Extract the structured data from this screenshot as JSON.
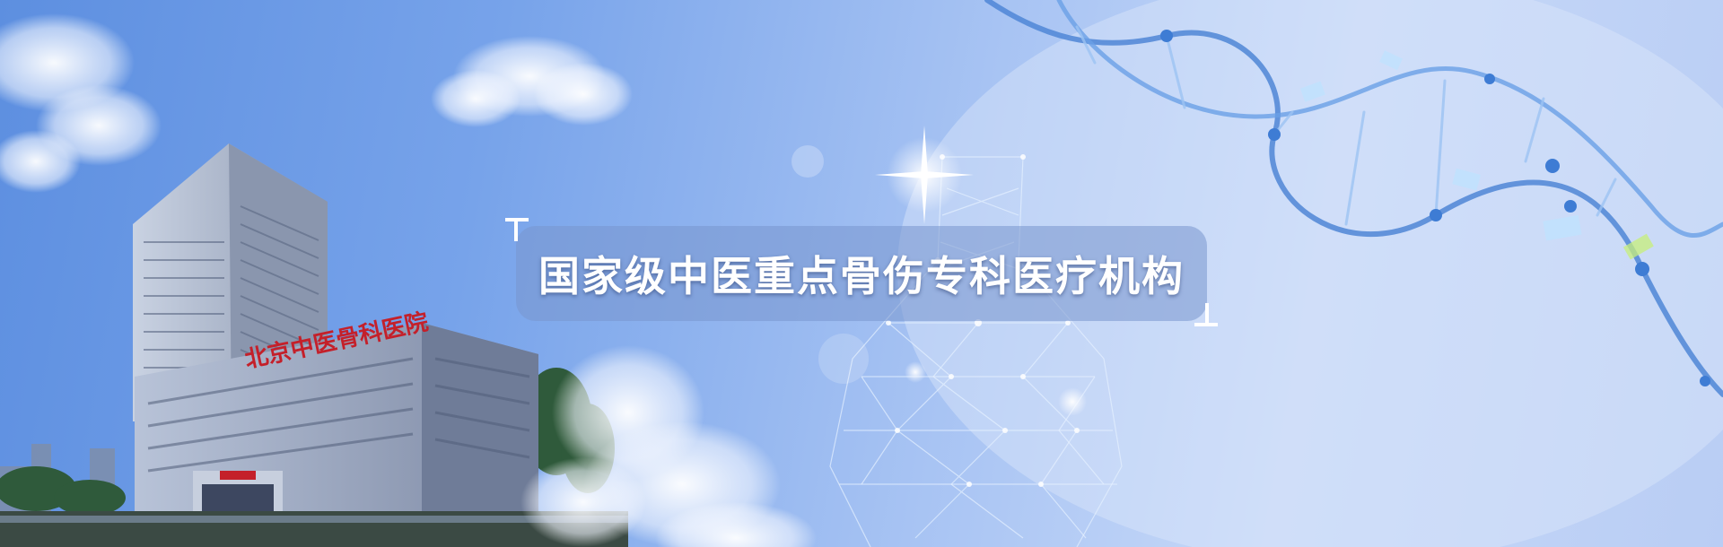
{
  "banner": {
    "headline": "国家级中医重点骨伤专科医疗机构",
    "building_sign": "北京中医骨科医院"
  },
  "colors": {
    "sky_left": "#5d8fe0",
    "sky_right": "#c6d8f8",
    "building_sign_red": "#c4202a",
    "caption_bg": "#7896cd"
  },
  "icons": [
    "dna-helix",
    "molecular-network",
    "cloud",
    "hospital-building"
  ]
}
